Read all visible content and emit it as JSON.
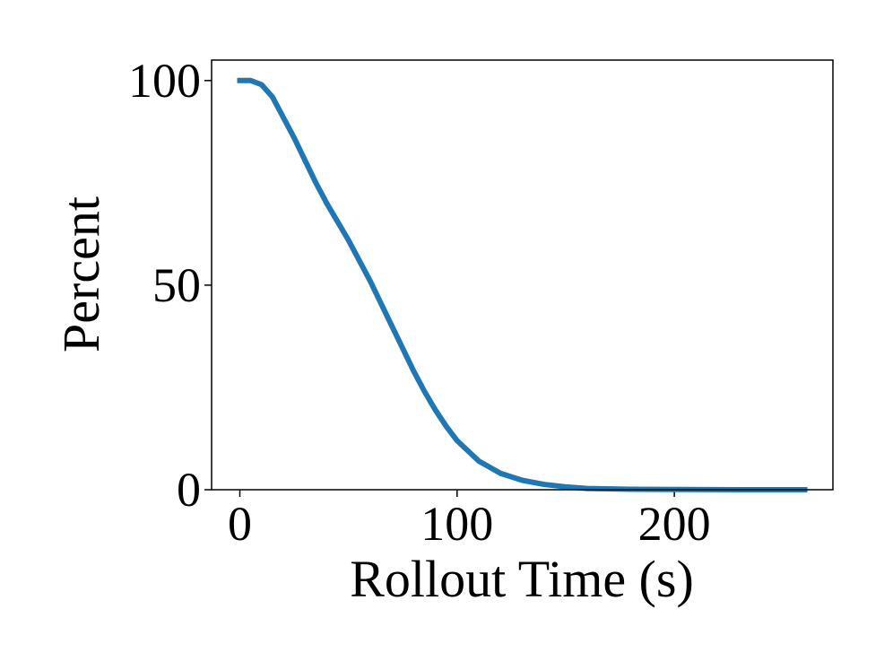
{
  "chart_data": {
    "type": "line",
    "x_label": "Rollout Time (s)",
    "y_label": "Percent",
    "x": [
      0,
      5,
      10,
      15,
      20,
      25,
      30,
      35,
      40,
      45,
      50,
      55,
      60,
      65,
      70,
      75,
      80,
      85,
      90,
      95,
      100,
      110,
      120,
      130,
      140,
      150,
      160,
      180,
      200,
      230,
      260
    ],
    "series": [
      {
        "color": "#1f77b4",
        "values": [
          100,
          100,
          99,
          96,
          91,
          86,
          80.5,
          75,
          70,
          65.5,
          61,
          56,
          51,
          45.5,
          40,
          34.5,
          29,
          24,
          19.5,
          15.5,
          12,
          7,
          4,
          2.3,
          1.3,
          0.7,
          0.3,
          0.1,
          0.05,
          0,
          0
        ]
      }
    ],
    "xlim": [
      -13,
      273
    ],
    "ylim": [
      0,
      105
    ],
    "xticks": [
      0,
      100,
      200
    ],
    "yticks": [
      0,
      50,
      100
    ]
  }
}
